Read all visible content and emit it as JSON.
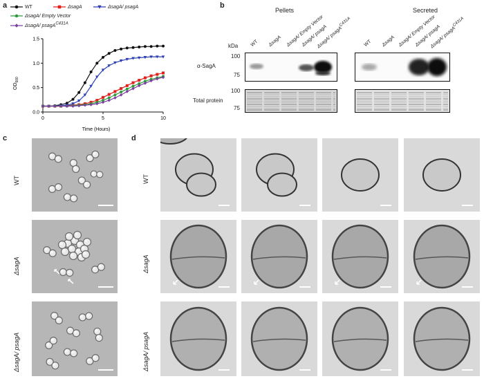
{
  "panels": {
    "a": "a",
    "b": "b",
    "c": "c",
    "d": "d"
  },
  "chart_data": {
    "type": "line",
    "ylabel": "OD",
    "ylabel_sub": "600",
    "xlabel": "Time (Hours)",
    "xlim": [
      0,
      10
    ],
    "ylim": [
      0,
      1.5
    ],
    "xticks": [
      0,
      5,
      10
    ],
    "yticks": [
      0.0,
      0.5,
      1.0,
      1.5
    ],
    "ytick_labels": [
      "0.0",
      "0.5",
      "1.0",
      "1.5"
    ],
    "x": [
      0,
      0.5,
      1,
      1.5,
      2,
      2.5,
      3,
      3.5,
      4,
      4.5,
      5,
      5.5,
      6,
      6.5,
      7,
      7.5,
      8,
      8.5,
      9,
      9.5,
      10
    ],
    "series": [
      {
        "name": "WT",
        "color": "#111111",
        "marker": "circle",
        "values": [
          0.12,
          0.12,
          0.13,
          0.15,
          0.18,
          0.26,
          0.4,
          0.6,
          0.82,
          1.0,
          1.12,
          1.2,
          1.26,
          1.29,
          1.31,
          1.32,
          1.33,
          1.34,
          1.34,
          1.35,
          1.35
        ]
      },
      {
        "name": "ΔsagA",
        "color": "#e0201c",
        "marker": "square",
        "values": [
          0.12,
          0.12,
          0.12,
          0.12,
          0.13,
          0.14,
          0.15,
          0.17,
          0.2,
          0.24,
          0.3,
          0.36,
          0.42,
          0.48,
          0.54,
          0.6,
          0.65,
          0.7,
          0.74,
          0.77,
          0.8
        ]
      },
      {
        "name": "ΔsagA/ psagA",
        "color": "#2b3fb5",
        "marker": "triangle",
        "values": [
          0.12,
          0.12,
          0.12,
          0.13,
          0.14,
          0.17,
          0.23,
          0.35,
          0.53,
          0.72,
          0.86,
          0.95,
          1.01,
          1.05,
          1.08,
          1.1,
          1.11,
          1.12,
          1.13,
          1.13,
          1.13
        ]
      },
      {
        "name": "ΔsagA/ Empty Vector",
        "color": "#2e9a3a",
        "marker": "circle",
        "values": [
          0.12,
          0.12,
          0.12,
          0.12,
          0.12,
          0.13,
          0.14,
          0.15,
          0.17,
          0.2,
          0.24,
          0.29,
          0.35,
          0.41,
          0.47,
          0.53,
          0.58,
          0.63,
          0.67,
          0.7,
          0.73
        ]
      },
      {
        "name": "ΔsagA/ psagAC431A",
        "color": "#7a3fa0",
        "marker": "diamond",
        "values": [
          0.12,
          0.12,
          0.12,
          0.12,
          0.12,
          0.12,
          0.13,
          0.14,
          0.15,
          0.17,
          0.2,
          0.24,
          0.29,
          0.35,
          0.42,
          0.48,
          0.54,
          0.59,
          0.64,
          0.68,
          0.71
        ]
      }
    ],
    "legend": [
      {
        "text": "WT"
      },
      {
        "text": "ΔsagA"
      },
      {
        "text": "ΔsagA/ psagA"
      },
      {
        "text": "ΔsagA/ Empty Vector"
      },
      {
        "text": "ΔsagA/ psagA",
        "sup": "C431A"
      }
    ]
  },
  "blot": {
    "pellets_title": "Pellets",
    "secreted_title": "Secreted",
    "kda": "kDa",
    "row1": "α-SagA",
    "row2": "Total protein",
    "markers_top": [
      "100",
      "75"
    ],
    "markers_bottom": [
      "100",
      "75"
    ],
    "pellet_lanes": [
      "WT",
      "ΔsagA",
      "ΔsagA/ Empty Vector",
      "ΔsagA/ psagA",
      "ΔsagA/ psagA"
    ],
    "secreted_lanes": [
      "WT",
      "ΔsagA",
      "ΔsagA/ Empty Vector",
      "ΔsagA/ psagA",
      "ΔsagA/ psagA"
    ],
    "sup": "C431A"
  },
  "micro_rows": {
    "r1": "WT",
    "r2": "ΔsagA",
    "r3": "ΔsagA/ psagA"
  }
}
